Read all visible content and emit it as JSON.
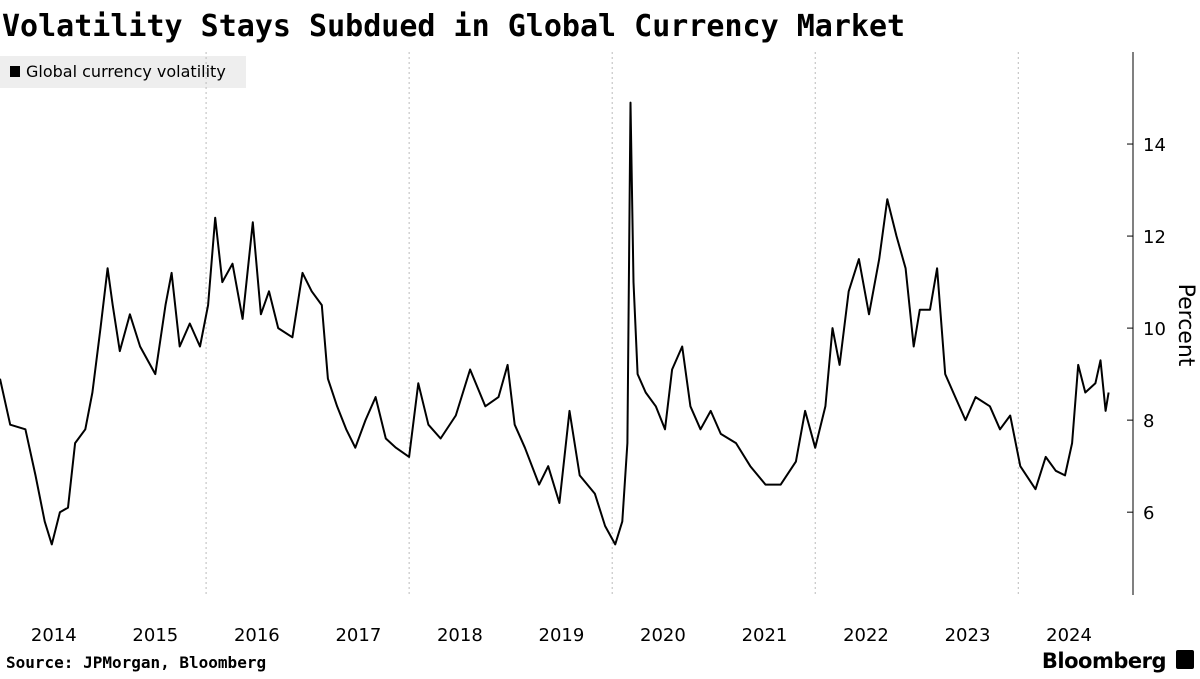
{
  "chart_data": {
    "type": "line",
    "title": "Volatility Stays Subdued in Global Currency Market",
    "y_label": "Percent",
    "source": "Source: JPMorgan, Bloomberg",
    "brand": "Bloomberg",
    "xlim": [
      2013.97,
      2025.13
    ],
    "ylim": [
      4.2,
      16
    ],
    "yticks": [
      6,
      8,
      10,
      12,
      14
    ],
    "xticks": [
      {
        "value": 2014.5,
        "label": "2014"
      },
      {
        "value": 2015.5,
        "label": "2015"
      },
      {
        "value": 2016.5,
        "label": "2016"
      },
      {
        "value": 2017.5,
        "label": "2017"
      },
      {
        "value": 2018.5,
        "label": "2018"
      },
      {
        "value": 2019.5,
        "label": "2019"
      },
      {
        "value": 2020.5,
        "label": "2020"
      },
      {
        "value": 2021.5,
        "label": "2021"
      },
      {
        "value": 2022.5,
        "label": "2022"
      },
      {
        "value": 2023.5,
        "label": "2023"
      },
      {
        "value": 2024.5,
        "label": "2024"
      }
    ],
    "xgrid": [
      2016,
      2018,
      2020,
      2022,
      2024
    ],
    "x": [
      2013.97,
      2014.07,
      2014.22,
      2014.32,
      2014.41,
      2014.48,
      2014.56,
      2014.64,
      2014.71,
      2014.81,
      2014.88,
      2014.96,
      2015.03,
      2015.08,
      2015.15,
      2015.25,
      2015.35,
      2015.5,
      2015.6,
      2015.66,
      2015.74,
      2015.84,
      2015.94,
      2016.02,
      2016.09,
      2016.16,
      2016.26,
      2016.36,
      2016.46,
      2016.54,
      2016.62,
      2016.71,
      2016.85,
      2016.95,
      2017.04,
      2017.14,
      2017.2,
      2017.29,
      2017.38,
      2017.47,
      2017.57,
      2017.67,
      2017.77,
      2017.87,
      2018.0,
      2018.09,
      2018.19,
      2018.31,
      2018.46,
      2018.6,
      2018.75,
      2018.88,
      2018.97,
      2019.04,
      2019.14,
      2019.28,
      2019.37,
      2019.48,
      2019.58,
      2019.68,
      2019.83,
      2019.93,
      2020.03,
      2020.1,
      2020.15,
      2020.18,
      2020.21,
      2020.25,
      2020.33,
      2020.43,
      2020.52,
      2020.59,
      2020.69,
      2020.77,
      2020.87,
      2020.97,
      2021.07,
      2021.22,
      2021.36,
      2021.51,
      2021.66,
      2021.81,
      2021.9,
      2022.0,
      2022.1,
      2022.17,
      2022.24,
      2022.33,
      2022.43,
      2022.53,
      2022.63,
      2022.71,
      2022.8,
      2022.89,
      2022.97,
      2023.03,
      2023.13,
      2023.2,
      2023.28,
      2023.38,
      2023.48,
      2023.58,
      2023.72,
      2023.82,
      2023.92,
      2024.02,
      2024.17,
      2024.27,
      2024.37,
      2024.46,
      2024.53,
      2024.59,
      2024.66,
      2024.76,
      2024.81,
      2024.86,
      2024.89
    ],
    "series": [
      {
        "name": "Global currency volatility",
        "color": "#000000",
        "values": [
          8.9,
          7.9,
          7.8,
          6.8,
          5.8,
          5.3,
          6.0,
          6.1,
          7.5,
          7.8,
          8.6,
          10.0,
          11.3,
          10.5,
          9.5,
          10.3,
          9.6,
          9.0,
          10.5,
          11.2,
          9.6,
          10.1,
          9.6,
          10.5,
          12.4,
          11.0,
          11.4,
          10.2,
          12.3,
          10.3,
          10.8,
          10.0,
          9.8,
          11.2,
          10.8,
          10.5,
          8.9,
          8.3,
          7.8,
          7.4,
          8.0,
          8.5,
          7.6,
          7.4,
          7.2,
          8.8,
          7.9,
          7.6,
          8.1,
          9.1,
          8.3,
          8.5,
          9.2,
          7.9,
          7.4,
          6.6,
          7.0,
          6.2,
          8.2,
          6.8,
          6.4,
          5.7,
          5.3,
          5.8,
          7.5,
          14.9,
          11.0,
          9.0,
          8.6,
          8.3,
          7.8,
          9.1,
          9.6,
          8.3,
          7.8,
          8.2,
          7.7,
          7.5,
          7.0,
          6.6,
          6.6,
          7.1,
          8.2,
          7.4,
          8.3,
          10.0,
          9.2,
          10.8,
          11.5,
          10.3,
          11.5,
          12.8,
          12.0,
          11.3,
          9.6,
          10.4,
          10.4,
          11.3,
          9.0,
          8.5,
          8.0,
          8.5,
          8.3,
          7.8,
          8.1,
          7.0,
          6.5,
          7.2,
          6.9,
          6.8,
          7.5,
          9.2,
          8.6,
          8.8,
          9.3,
          8.2,
          8.6
        ]
      }
    ]
  }
}
